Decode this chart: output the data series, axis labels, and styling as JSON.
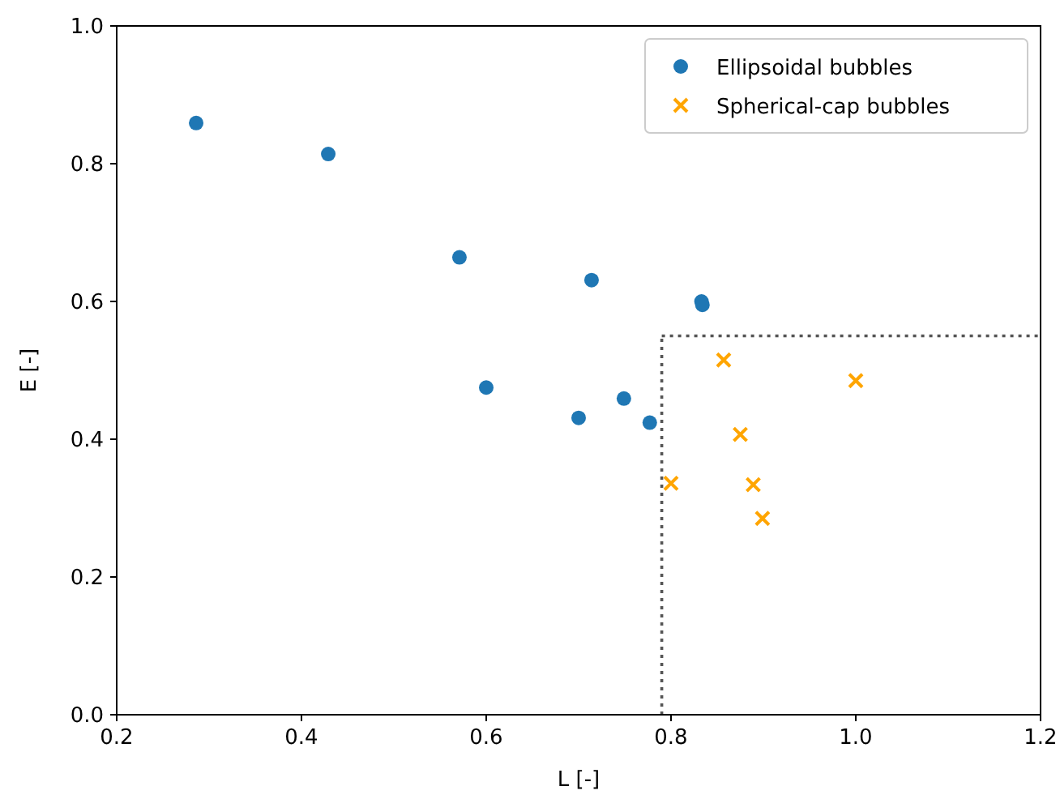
{
  "chart_data": {
    "type": "scatter",
    "xlabel": "L [-]",
    "ylabel": "E [-]",
    "xlim": [
      0.2,
      1.2
    ],
    "xticks": [
      {
        "value": 0.2,
        "label": "0.2"
      },
      {
        "value": 0.4,
        "label": "0.4"
      },
      {
        "value": 0.6,
        "label": "0.6"
      },
      {
        "value": 0.8,
        "label": "0.8"
      },
      {
        "value": 1.0,
        "label": "1.0"
      },
      {
        "value": 1.2,
        "label": "1.2"
      }
    ],
    "ylim": [
      0,
      1
    ],
    "yticks": [
      {
        "value": 0,
        "label": "0.0"
      },
      {
        "value": 0.2,
        "label": "0.2"
      },
      {
        "value": 0.4,
        "label": "0.4"
      },
      {
        "value": 0.6,
        "label": "0.6"
      },
      {
        "value": 0.8,
        "label": "0.8"
      },
      {
        "value": 1.0,
        "label": "1.0"
      }
    ],
    "legend": "top right",
    "grid": false,
    "series": [
      {
        "name": "Ellipsoidal bubbles",
        "color": "#1f77b4",
        "marker": "circle",
        "x": [
          0.286,
          0.429,
          0.571,
          0.6,
          0.714,
          0.7,
          0.749,
          0.777,
          0.833,
          0.834
        ],
        "values": [
          0.859,
          0.814,
          0.664,
          0.475,
          0.631,
          0.431,
          0.459,
          0.424,
          0.6,
          0.595
        ]
      },
      {
        "name": "Spherical-cap bubbles",
        "color": "#ffa500",
        "marker": "cross",
        "x": [
          0.8,
          0.857,
          0.875,
          0.889,
          0.899,
          1.0
        ],
        "values": [
          0.336,
          0.515,
          0.407,
          0.334,
          0.285,
          0.485
        ]
      }
    ],
    "ref_lines": [
      {
        "axis": "x",
        "value": 0.79,
        "color": "#555555",
        "line_style": "dotted"
      },
      {
        "axis": "y",
        "value": 0.55,
        "color": "#555555",
        "line_style": "dotted"
      }
    ]
  }
}
